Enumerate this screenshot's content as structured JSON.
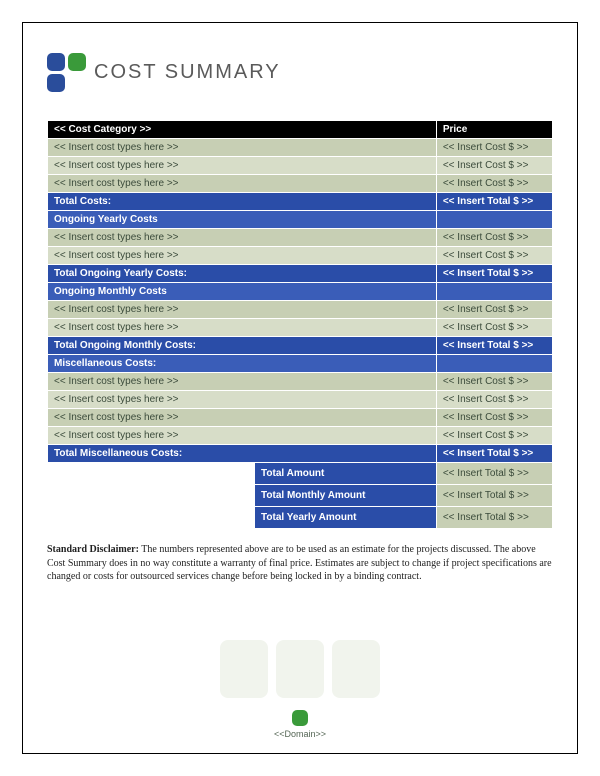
{
  "colors": {
    "logo_blue": "#2a4d9b",
    "logo_green": "#3a9a3a",
    "row_alt1": "#c7cfb4",
    "row_alt2": "#d7ddc8",
    "section_blue": "#2a4da8",
    "subsection_blue": "#3a5db8",
    "header_bg": "#000000",
    "header_fg": "#ffffff",
    "watermark": "#f1f4ed"
  },
  "title": "COST SUMMARY",
  "table": {
    "header": {
      "category": "<< Cost Category >>",
      "price": "Price"
    },
    "sections": [
      {
        "rows": [
          {
            "type": "<< Insert cost types here >>",
            "cost": "<< Insert Cost $ >>"
          },
          {
            "type": "<< Insert cost types here >>",
            "cost": "<< Insert Cost $ >>"
          },
          {
            "type": "<< Insert cost types here >>",
            "cost": "<< Insert Cost $ >>"
          }
        ],
        "total_label": "Total Costs:",
        "total_value": "<< Insert Total $ >>",
        "next_heading": "Ongoing Yearly Costs"
      },
      {
        "rows": [
          {
            "type": "<< Insert cost types here >>",
            "cost": "<< Insert Cost $ >>"
          },
          {
            "type": "<< Insert cost types here >>",
            "cost": "<< Insert Cost $ >>"
          }
        ],
        "total_label": "Total Ongoing Yearly Costs:",
        "total_value": "<< Insert Total $ >>",
        "next_heading": "Ongoing Monthly Costs"
      },
      {
        "rows": [
          {
            "type": "<< Insert cost types here >>",
            "cost": "<< Insert Cost $ >>"
          },
          {
            "type": "<< Insert cost types here >>",
            "cost": "<< Insert Cost $ >>"
          }
        ],
        "total_label": "Total Ongoing Monthly Costs:",
        "total_value": "<< Insert Total $ >>",
        "next_heading": "Miscellaneous Costs:"
      },
      {
        "rows": [
          {
            "type": "<< Insert cost types here >>",
            "cost": "<< Insert Cost $ >>"
          },
          {
            "type": "<< Insert cost types here >>",
            "cost": "<< Insert Cost $ >>"
          },
          {
            "type": "<< Insert cost types here >>",
            "cost": "<< Insert Cost $ >>"
          },
          {
            "type": "<< Insert cost types here >>",
            "cost": "<< Insert Cost $ >>"
          }
        ],
        "total_label": "Total Miscellaneous Costs:",
        "total_value": "<< Insert Total $ >>",
        "next_heading": null
      }
    ],
    "summaries": [
      {
        "label": "Total Amount",
        "value": "<< Insert Total $ >>"
      },
      {
        "label": "Total Monthly Amount",
        "value": "<< Insert Total $ >>"
      },
      {
        "label": "Total Yearly Amount",
        "value": "<< Insert Total $ >>"
      }
    ]
  },
  "disclaimer": {
    "heading": "Standard Disclaimer:",
    "body": " The numbers represented above are to be used as an estimate for the projects discussed. The above Cost Summary does in no way constitute a warranty of final price. Estimates are subject to change if project specifications are changed or costs for outsourced services change before being locked in by a binding contract."
  },
  "footer": {
    "domain": "<<Domain>>"
  },
  "layout": {
    "col_widths": [
      "41%",
      "36%",
      "23%"
    ]
  }
}
